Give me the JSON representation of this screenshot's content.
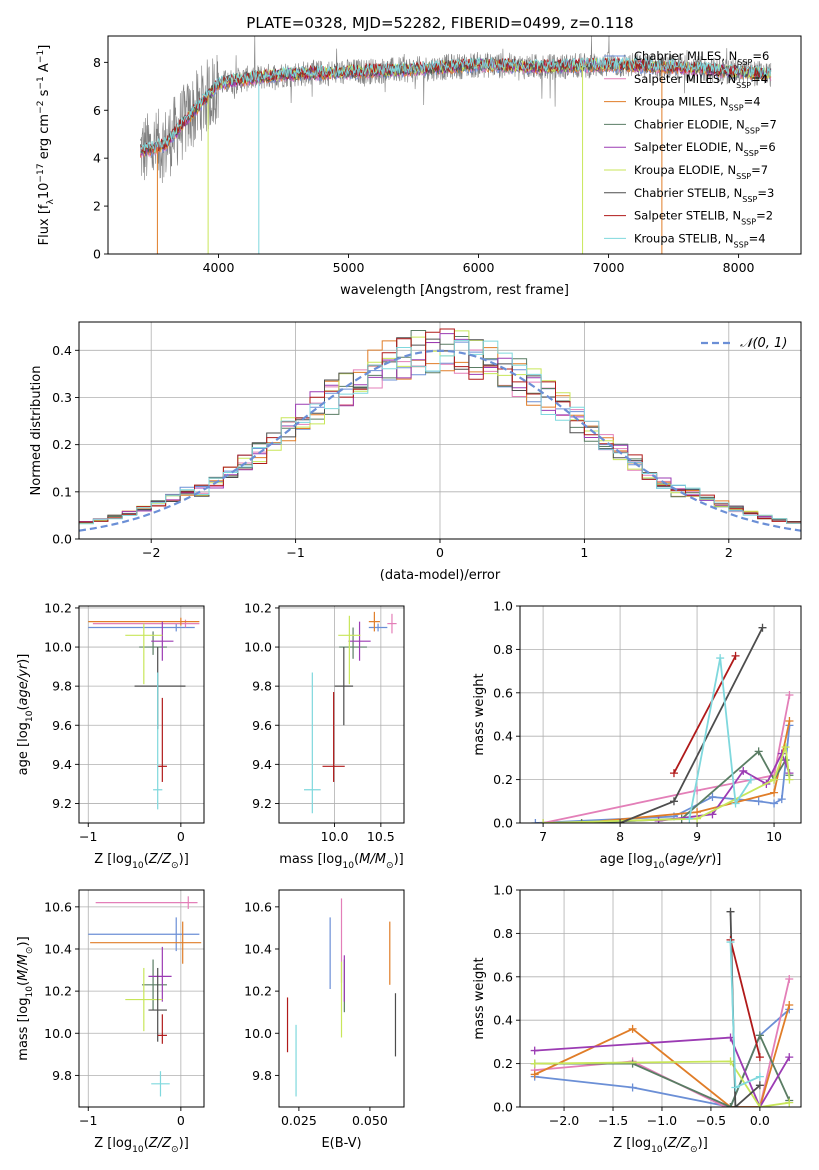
{
  "figure": {
    "title": "PLATE=0328, MJD=52282, FIBERID=0499, z=0.118"
  },
  "colors": {
    "Chabrier MILES": "#6b8fd6",
    "Salpeter MILES": "#e37fb8",
    "Kroupa MILES": "#e07d28",
    "Chabrier ELODIE": "#5a7d64",
    "Salpeter ELODIE": "#9b3bb3",
    "Kroupa ELODIE": "#c8e65a",
    "Chabrier STELIB": "#4d4d4d",
    "Salpeter STELIB": "#b01a1a",
    "Kroupa STELIB": "#7fd8dd"
  },
  "chart_data": [
    {
      "id": "spectrum",
      "type": "line",
      "title": "PLATE=0328, MJD=52282, FIBERID=0499, z=0.118",
      "xlabel": "wavelength [Angstrom, rest frame]",
      "ylabel": "Flux [f_λ 10^-17 erg cm^-2 s^-1 A^-1]",
      "xlim": [
        3150,
        8480
      ],
      "ylim": [
        0,
        9.1
      ],
      "xticks": [
        4000,
        5000,
        6000,
        7000,
        8000
      ],
      "yticks": [
        0,
        2,
        4,
        6,
        8
      ],
      "grid": false,
      "legend_position": "top-right",
      "continuum": {
        "x": [
          3400,
          3500,
          3600,
          3700,
          3800,
          3900,
          4000,
          4200,
          4500,
          5000,
          5500,
          6000,
          6500,
          7000,
          7500,
          8000,
          8250
        ],
        "y": [
          4.3,
          4.4,
          4.6,
          5.3,
          5.9,
          6.5,
          7.1,
          7.3,
          7.5,
          7.6,
          7.7,
          7.9,
          7.8,
          7.9,
          7.8,
          7.6,
          7.5
        ]
      },
      "series": [
        {
          "name": "Chabrier MILES",
          "n_ssp": 6
        },
        {
          "name": "Salpeter MILES",
          "n_ssp": 4
        },
        {
          "name": "Kroupa MILES",
          "n_ssp": 4
        },
        {
          "name": "Chabrier ELODIE",
          "n_ssp": 7
        },
        {
          "name": "Salpeter ELODIE",
          "n_ssp": 6
        },
        {
          "name": "Kroupa ELODIE",
          "n_ssp": 7
        },
        {
          "name": "Chabrier STELIB",
          "n_ssp": 3
        },
        {
          "name": "Salpeter STELIB",
          "n_ssp": 2
        },
        {
          "name": "Kroupa STELIB",
          "n_ssp": 4
        }
      ],
      "legend_labels": [
        "Chabrier MILES, N_SSP=6",
        "Salpeter MILES, N_SSP=4",
        "Kroupa MILES, N_SSP=4",
        "Chabrier ELODIE, N_SSP=7",
        "Salpeter ELODIE, N_SSP=6",
        "Kroupa ELODIE, N_SSP=7",
        "Chabrier STELIB, N_SSP=3",
        "Salpeter STELIB, N_SSP=2",
        "Kroupa STELIB, N_SSP=4"
      ]
    },
    {
      "id": "residuals",
      "type": "line",
      "xlabel": "(data-model)/error",
      "ylabel": "Normed distribution",
      "xlim": [
        -2.5,
        2.5
      ],
      "ylim": [
        0,
        0.46
      ],
      "xticks": [
        -2,
        -1,
        0,
        1,
        2
      ],
      "yticks": [
        0.0,
        0.1,
        0.2,
        0.3,
        0.4
      ],
      "grid": true,
      "legend_position": "top-right",
      "gaussian_label": "𝒩(0, 1)",
      "gaussian_color": "#6b8fd6"
    },
    {
      "id": "age-vs-Z",
      "type": "scatter",
      "xlabel": "Z [log10(Z/Z⊙)]",
      "ylabel": "age  [log10(age/yr)]",
      "xlim": [
        -1.1,
        0.25
      ],
      "ylim": [
        9.1,
        10.21
      ],
      "xticks": [
        -1,
        0
      ],
      "yticks": [
        9.2,
        9.4,
        9.6,
        9.8,
        10.0,
        10.2
      ],
      "grid": true,
      "points": [
        {
          "series": "Chabrier MILES",
          "x": -0.05,
          "xerr": [
            0.95,
            0.2
          ],
          "y": 10.1,
          "yerr": [
            0.02,
            0.02
          ]
        },
        {
          "series": "Salpeter MILES",
          "x": 0.05,
          "xerr": [
            1.0,
            0.15
          ],
          "y": 10.12,
          "yerr": [
            0.02,
            0.02
          ]
        },
        {
          "series": "Kroupa MILES",
          "x": 0.0,
          "xerr": [
            1.0,
            0.2
          ],
          "y": 10.13,
          "yerr": [
            0.02,
            0.02
          ]
        },
        {
          "series": "Chabrier ELODIE",
          "x": -0.3,
          "xerr": [
            0.15,
            0.15
          ],
          "y": 10.0,
          "yerr": [
            0.04,
            0.08
          ]
        },
        {
          "series": "Salpeter ELODIE",
          "x": -0.2,
          "xerr": [
            0.12,
            0.12
          ],
          "y": 10.03,
          "yerr": [
            0.1,
            0.1
          ]
        },
        {
          "series": "Kroupa ELODIE",
          "x": -0.4,
          "xerr": [
            0.2,
            0.2
          ],
          "y": 10.06,
          "yerr": [
            0.25,
            0.06
          ]
        },
        {
          "series": "Chabrier STELIB",
          "x": -0.25,
          "xerr": [
            0.25,
            0.3
          ],
          "y": 9.8,
          "yerr": [
            0.22,
            0.2
          ]
        },
        {
          "series": "Salpeter STELIB",
          "x": -0.2,
          "xerr": [
            0.05,
            0.05
          ],
          "y": 9.39,
          "yerr": [
            0.08,
            0.35
          ]
        },
        {
          "series": "Kroupa STELIB",
          "x": -0.25,
          "xerr": [
            0.05,
            0.05
          ],
          "y": 9.27,
          "yerr": [
            0.1,
            0.6
          ]
        }
      ]
    },
    {
      "id": "age-vs-mass",
      "type": "scatter",
      "xlabel": "mass [log10(M/M⊙)]",
      "xlim": [
        9.4,
        10.75
      ],
      "ylim": [
        9.1,
        10.21
      ],
      "xticks": [
        10.0,
        10.5
      ],
      "yticks": [
        9.2,
        9.4,
        9.6,
        9.8,
        10.0,
        10.2
      ],
      "grid": true,
      "points": [
        {
          "series": "Chabrier MILES",
          "x": 10.47,
          "xerr": [
            0.1,
            0.1
          ],
          "y": 10.1,
          "yerr": [
            0.02,
            0.02
          ]
        },
        {
          "series": "Salpeter MILES",
          "x": 10.62,
          "xerr": [
            0.05,
            0.05
          ],
          "y": 10.12,
          "yerr": [
            0.05,
            0.05
          ]
        },
        {
          "series": "Kroupa MILES",
          "x": 10.43,
          "xerr": [
            0.06,
            0.06
          ],
          "y": 10.13,
          "yerr": [
            0.05,
            0.05
          ]
        },
        {
          "series": "Chabrier ELODIE",
          "x": 10.2,
          "xerr": [
            0.15,
            0.15
          ],
          "y": 10.0,
          "yerr": [
            0.06,
            0.1
          ]
        },
        {
          "series": "Salpeter ELODIE",
          "x": 10.27,
          "xerr": [
            0.12,
            0.12
          ],
          "y": 10.03,
          "yerr": [
            0.1,
            0.1
          ]
        },
        {
          "series": "Kroupa ELODIE",
          "x": 10.16,
          "xerr": [
            0.12,
            0.12
          ],
          "y": 10.06,
          "yerr": [
            0.25,
            0.1
          ]
        },
        {
          "series": "Chabrier STELIB",
          "x": 10.1,
          "xerr": [
            0.1,
            0.1
          ],
          "y": 9.8,
          "yerr": [
            0.2,
            0.2
          ]
        },
        {
          "series": "Salpeter STELIB",
          "x": 9.99,
          "xerr": [
            0.12,
            0.12
          ],
          "y": 9.39,
          "yerr": [
            0.08,
            0.38
          ]
        },
        {
          "series": "Kroupa STELIB",
          "x": 9.76,
          "xerr": [
            0.09,
            0.09
          ],
          "y": 9.27,
          "yerr": [
            0.12,
            0.6
          ]
        }
      ]
    },
    {
      "id": "mass-weight-vs-age",
      "type": "line",
      "xlabel": "age  [log10(age/yr)]",
      "ylabel": "mass weight",
      "xlim": [
        6.7,
        10.35
      ],
      "ylim": [
        0,
        1.0
      ],
      "xticks": [
        7,
        8,
        9,
        10
      ],
      "yticks": [
        0.0,
        0.2,
        0.4,
        0.6,
        0.8,
        1.0
      ],
      "grid": true,
      "series": [
        {
          "name": "Chabrier MILES",
          "x": [
            6.9,
            8.7,
            9.2,
            9.8,
            10.0,
            10.1,
            10.2
          ],
          "y": [
            0.0,
            0.03,
            0.12,
            0.1,
            0.09,
            0.11,
            0.45
          ]
        },
        {
          "name": "Salpeter MILES",
          "x": [
            7.0,
            9.0,
            10.0,
            10.2
          ],
          "y": [
            0.0,
            0.15,
            0.22,
            0.59
          ]
        },
        {
          "name": "Kroupa MILES",
          "x": [
            7.5,
            9.0,
            10.0,
            10.2
          ],
          "y": [
            0.0,
            0.05,
            0.14,
            0.47
          ]
        },
        {
          "name": "Chabrier ELODIE",
          "x": [
            7.5,
            8.8,
            9.8,
            10.0,
            10.15,
            10.2
          ],
          "y": [
            0.0,
            0.02,
            0.33,
            0.2,
            0.29,
            0.22
          ]
        },
        {
          "name": "Salpeter ELODIE",
          "x": [
            8.5,
            9.2,
            9.6,
            9.9,
            10.1,
            10.2
          ],
          "y": [
            0.01,
            0.04,
            0.24,
            0.18,
            0.32,
            0.23
          ]
        },
        {
          "name": "Kroupa ELODIE",
          "x": [
            7.0,
            9.0,
            10.0,
            10.15,
            10.2
          ],
          "y": [
            0.0,
            0.02,
            0.2,
            0.35,
            0.2
          ]
        },
        {
          "name": "Chabrier STELIB",
          "x": [
            8.0,
            8.7,
            9.85
          ],
          "y": [
            0.0,
            0.1,
            0.9
          ]
        },
        {
          "name": "Salpeter STELIB",
          "x": [
            8.7,
            9.5
          ],
          "y": [
            0.23,
            0.77
          ]
        },
        {
          "name": "Kroupa STELIB",
          "x": [
            8.9,
            9.3,
            9.5,
            9.7
          ],
          "y": [
            0.02,
            0.76,
            0.09,
            0.2
          ]
        }
      ]
    },
    {
      "id": "mass-vs-Z",
      "type": "scatter",
      "xlabel": "Z [log10(Z/Z⊙)]",
      "ylabel": "mass [log10(M/M⊙)]",
      "xlim": [
        -1.1,
        0.25
      ],
      "ylim": [
        9.65,
        10.68
      ],
      "xticks": [
        -1,
        0
      ],
      "yticks": [
        9.8,
        10.0,
        10.2,
        10.4,
        10.6
      ],
      "grid": true,
      "points": [
        {
          "series": "Chabrier MILES",
          "x": -0.05,
          "xerr": [
            0.95,
            0.25
          ],
          "y": 10.47,
          "yerr": [
            0.08,
            0.08
          ]
        },
        {
          "series": "Salpeter MILES",
          "x": 0.08,
          "xerr": [
            1.0,
            0.1
          ],
          "y": 10.62,
          "yerr": [
            0.03,
            0.03
          ]
        },
        {
          "series": "Kroupa MILES",
          "x": 0.02,
          "xerr": [
            1.0,
            0.2
          ],
          "y": 10.43,
          "yerr": [
            0.1,
            0.1
          ]
        },
        {
          "series": "Chabrier ELODIE",
          "x": -0.3,
          "xerr": [
            0.12,
            0.15
          ],
          "y": 10.23,
          "yerr": [
            0.12,
            0.12
          ]
        },
        {
          "series": "Salpeter ELODIE",
          "x": -0.2,
          "xerr": [
            0.15,
            0.1
          ],
          "y": 10.27,
          "yerr": [
            0.12,
            0.14
          ]
        },
        {
          "series": "Kroupa ELODIE",
          "x": -0.4,
          "xerr": [
            0.2,
            0.2
          ],
          "y": 10.16,
          "yerr": [
            0.15,
            0.15
          ]
        },
        {
          "series": "Chabrier STELIB",
          "x": -0.25,
          "xerr": [
            0.1,
            0.1
          ],
          "y": 10.11,
          "yerr": [
            0.15,
            0.2
          ]
        },
        {
          "series": "Salpeter STELIB",
          "x": -0.2,
          "xerr": [
            0.05,
            0.05
          ],
          "y": 9.99,
          "yerr": [
            0.04,
            0.1
          ]
        },
        {
          "series": "Kroupa STELIB",
          "x": -0.22,
          "xerr": [
            0.1,
            0.1
          ],
          "y": 9.76,
          "yerr": [
            0.06,
            0.06
          ]
        }
      ]
    },
    {
      "id": "mass-vs-ebv",
      "type": "scatter",
      "xlabel": "E(B-V)",
      "xlim": [
        0.018,
        0.062
      ],
      "ylim": [
        9.65,
        10.68
      ],
      "xticks": [
        0.025,
        0.05
      ],
      "xtick_labels": [
        "0.025",
        "0.050"
      ],
      "yticks": [
        9.8,
        10.0,
        10.2,
        10.4,
        10.6
      ],
      "grid": false,
      "points": [
        {
          "series": "Chabrier MILES",
          "x": 0.036,
          "y": 10.38,
          "yerr": [
            0.17,
            0.17
          ]
        },
        {
          "series": "Salpeter MILES",
          "x": 0.04,
          "y": 10.44,
          "yerr": [
            0.2,
            0.2
          ]
        },
        {
          "series": "Kroupa MILES",
          "x": 0.057,
          "y": 10.38,
          "yerr": [
            0.15,
            0.15
          ]
        },
        {
          "series": "Chabrier ELODIE",
          "x": 0.041,
          "y": 10.25,
          "yerr": [
            0.15,
            0.1
          ]
        },
        {
          "series": "Salpeter ELODIE",
          "x": 0.041,
          "y": 10.27,
          "yerr": [
            0.12,
            0.1
          ]
        },
        {
          "series": "Kroupa ELODIE",
          "x": 0.04,
          "y": 10.16,
          "yerr": [
            0.18,
            0.18
          ]
        },
        {
          "series": "Chabrier STELIB",
          "x": 0.059,
          "y": 10.04,
          "yerr": [
            0.15,
            0.15
          ]
        },
        {
          "series": "Salpeter STELIB",
          "x": 0.021,
          "y": 10.04,
          "yerr": [
            0.13,
            0.13
          ]
        },
        {
          "series": "Kroupa STELIB",
          "x": 0.024,
          "y": 9.87,
          "yerr": [
            0.17,
            0.17
          ]
        }
      ]
    },
    {
      "id": "mass-weight-vs-Z",
      "type": "line",
      "xlabel": "Z [log10(Z/Z⊙)]",
      "ylabel": "mass weight",
      "xlim": [
        -2.45,
        0.42
      ],
      "ylim": [
        0,
        1.0
      ],
      "xticks": [
        -2.0,
        -1.5,
        -1.0,
        -0.5,
        0.0
      ],
      "yticks": [
        0.0,
        0.2,
        0.4,
        0.6,
        0.8,
        1.0
      ],
      "grid": true,
      "series": [
        {
          "name": "Chabrier MILES",
          "x": [
            -2.3,
            -1.3,
            -0.3,
            0.0,
            0.3
          ],
          "y": [
            0.14,
            0.09,
            0.0,
            0.33,
            0.45
          ]
        },
        {
          "name": "Salpeter MILES",
          "x": [
            -2.3,
            -1.3,
            -0.35,
            0.0,
            0.3
          ],
          "y": [
            0.17,
            0.21,
            0.0,
            0.0,
            0.59
          ]
        },
        {
          "name": "Kroupa MILES",
          "x": [
            -2.3,
            -1.3,
            -0.3,
            0.0,
            0.3
          ],
          "y": [
            0.15,
            0.36,
            0.0,
            0.0,
            0.47
          ]
        },
        {
          "name": "Chabrier ELODIE",
          "x": [
            -2.3,
            -1.3,
            -0.3,
            0.0,
            0.3
          ],
          "y": [
            0.2,
            0.2,
            0.0,
            0.33,
            0.03
          ]
        },
        {
          "name": "Salpeter ELODIE",
          "x": [
            -2.3,
            -0.3,
            0.0,
            0.3
          ],
          "y": [
            0.26,
            0.32,
            0.0,
            0.23
          ]
        },
        {
          "name": "Kroupa ELODIE",
          "x": [
            -2.3,
            -0.3,
            0.0,
            0.3
          ],
          "y": [
            0.2,
            0.21,
            0.0,
            0.02
          ]
        },
        {
          "name": "Chabrier STELIB",
          "x": [
            -0.3,
            -0.25,
            0.0
          ],
          "y": [
            0.9,
            0.0,
            0.1
          ]
        },
        {
          "name": "Salpeter STELIB",
          "x": [
            -0.3,
            0.0
          ],
          "y": [
            0.77,
            0.23
          ]
        },
        {
          "name": "Kroupa STELIB",
          "x": [
            -0.3,
            -0.25,
            0.0
          ],
          "y": [
            0.76,
            0.09,
            0.14
          ]
        }
      ]
    }
  ]
}
